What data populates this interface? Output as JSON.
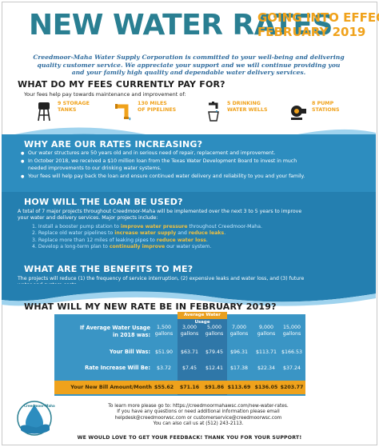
{
  "header": {
    "title": "NEW WATER RATES",
    "effect_line1": "GOING INTO EFFECT",
    "effect_line2": "FEBRUARY 2019"
  },
  "mission": {
    "line1": "Creedmoor-Maha Water Supply Corporation is committed to your well-being and delivering",
    "line2": "quality customer service. We appreciate your support and we will continue providing you",
    "line3": "and your family high quality and dependable water delivery services."
  },
  "fees": {
    "heading": "WHAT DO MY FEES CURRENTLY PAY FOR?",
    "intro": "Your fees help pay towards maintenance and improvement of:",
    "items": [
      {
        "icon": "water-tower-icon",
        "line1": "9 STORAGE",
        "line2": "TANKS"
      },
      {
        "icon": "pipeline-icon",
        "line1": "130 MILES",
        "line2": "OF PIPELINES"
      },
      {
        "icon": "faucet-icon",
        "line1": "5 DRINKING",
        "line2": "WATER WELLS"
      },
      {
        "icon": "pump-icon",
        "line1": "8 PUMP",
        "line2": "STATIONS"
      }
    ]
  },
  "increasing": {
    "heading": "WHY ARE OUR RATES INCREASING?",
    "bullets": [
      "Our water structures are 50 years old and in serious need of repair, replacement and improvement.",
      "In October 2018, we received a $10 million loan from the Texas Water Development Board to invest in much",
      "needed improvements to our drinking water systems.",
      "Your fees will help pay back the loan and ensure continued water delivery and reliability to you and your family."
    ]
  },
  "loan": {
    "heading": "HOW WILL THE LOAN BE USED?",
    "intro1": "A total of 7 major projects throughout Creedmoor-Maha will be implemented over the next 3 to 5 years to improve",
    "intro2": "your water and delivery services. Major projects include:",
    "projects": [
      {
        "pre": "1. Install a booster pump station to ",
        "hl": "improve water pressure",
        "post": " throughout Creedmoor-Maha."
      },
      {
        "pre": "2. Replace old water pipelines to ",
        "hl": "increase water supply",
        "mid": " and ",
        "hl2": "reduce leaks",
        "post": "."
      },
      {
        "pre": "3. Replace more than 12 miles of leaking pipes to ",
        "hl": "reduce water loss",
        "post": "."
      },
      {
        "pre": "4. Develop a long-term plan to ",
        "hl": "continually improve",
        "post": " our water system."
      }
    ]
  },
  "benefits": {
    "heading": "WHAT ARE THE BENEFITS TO ME?",
    "line1": "The projects will reduce (1) the frequency of service interruption, (2) expensive leaks and water loss, and (3) future",
    "line2": "water and system costs."
  },
  "newrate": {
    "heading": "WHAT WILL MY NEW RATE BE IN FEBRUARY 2019?",
    "avg_label": "Average Water Usage",
    "row_labels": {
      "usage1": "If Average Water Usage",
      "usage2": "in 2018 was:",
      "bill": "Your Bill Was:",
      "increase": "Rate Increase Will Be:",
      "newbill": "Your New Bill Amount/Month"
    },
    "columns": [
      {
        "usage": "1,500",
        "unit": "gallons",
        "bill": "$51.90",
        "increase": "$3.72",
        "newbill": "$55.62"
      },
      {
        "usage": "3,000",
        "unit": "gallons",
        "bill": "$63.71",
        "increase": "$7.45",
        "newbill": "$71.16"
      },
      {
        "usage": "5,000",
        "unit": "gallons",
        "bill": "$79.45",
        "increase": "$12.41",
        "newbill": "$91.86"
      },
      {
        "usage": "7,000",
        "unit": "gallons",
        "bill": "$96.31",
        "increase": "$17.38",
        "newbill": "$113.69"
      },
      {
        "usage": "9,000",
        "unit": "gallons",
        "bill": "$113.71",
        "increase": "$22.34",
        "newbill": "$136.05"
      },
      {
        "usage": "15,000",
        "unit": "gallons",
        "bill": "$166.53",
        "increase": "$37.24",
        "newbill": "$203.77"
      }
    ]
  },
  "contact": {
    "logo_text": "Creedmoor-Maha",
    "line1": "To learn more please go to: https://creedmoormahawsc.com/new-water-rates.",
    "line2": "If you have any questions or need additional information please email",
    "line3": "helpdesk@creedmoorwsc.com or customerservice@creedmoorwsc.com",
    "line4": "You can also call us at (512) 243-2113.",
    "footer": "WE WOULD LOVE TO GET YOUR FEEDBACK! THANK YOU FOR YOUR SUPPORT!"
  },
  "colors": {
    "teal": "#2a7f92",
    "orange": "#f0a21b",
    "blue": "#2d8dbf",
    "darkblue": "#247fb0"
  }
}
